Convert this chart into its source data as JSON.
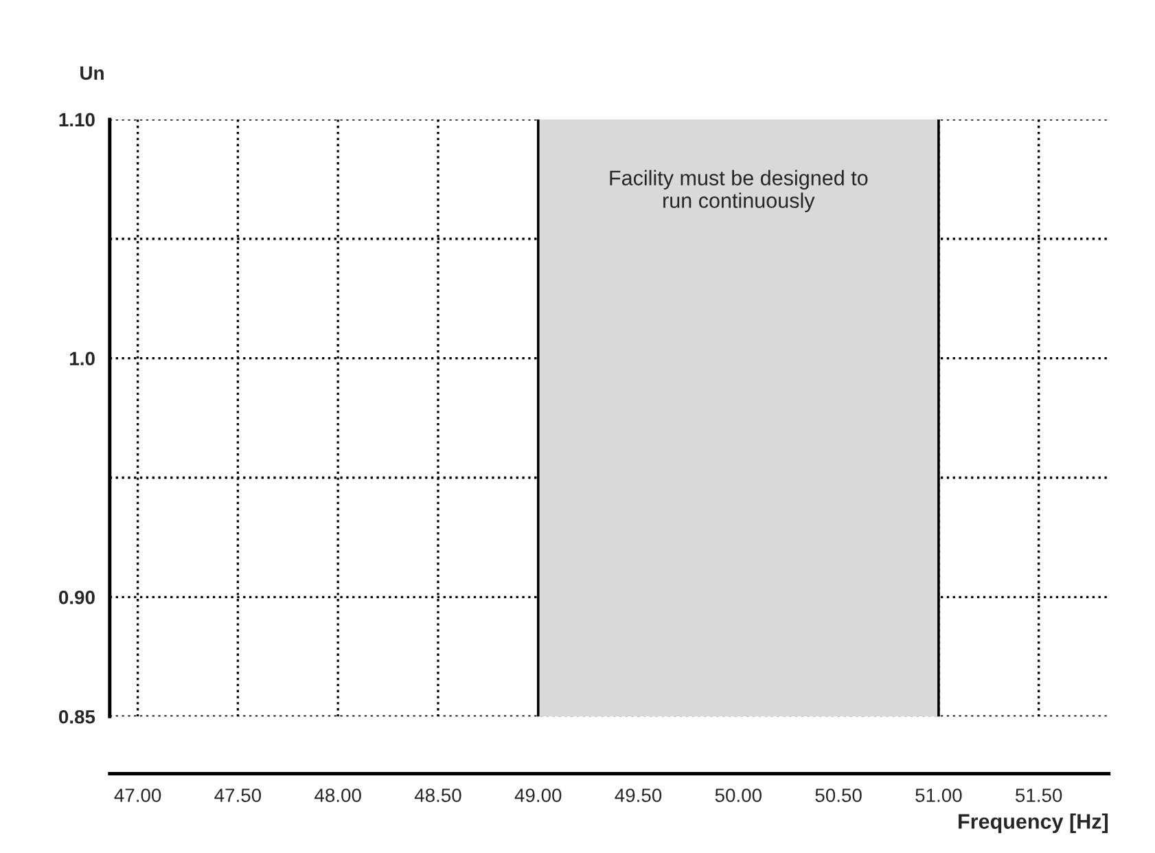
{
  "chart_data": {
    "type": "area",
    "x": [
      49.0,
      51.0
    ],
    "series": [
      {
        "color": "#d9d9d9",
        "values": [
          1.1,
          1.1
        ]
      }
    ],
    "annotations": [
      "Facility must be designed to\nrun continuously"
    ],
    "xlabel": "Frequency [Hz]",
    "ylabel": "Un",
    "xlim": [
      46.86,
      51.85
    ],
    "ylim": [
      0.85,
      1.1
    ],
    "xticks": [
      {
        "value": 47.0,
        "label": "47.00"
      },
      {
        "value": 47.5,
        "label": "47.50"
      },
      {
        "value": 48.0,
        "label": "48.00"
      },
      {
        "value": 48.5,
        "label": "48.50"
      },
      {
        "value": 49.0,
        "label": "49.00"
      },
      {
        "value": 49.5,
        "label": "49.50"
      },
      {
        "value": 50.0,
        "label": "50.00"
      },
      {
        "value": 50.5,
        "label": "50.50"
      },
      {
        "value": 51.0,
        "label": "51.00"
      },
      {
        "value": 51.5,
        "label": "51.50"
      }
    ],
    "yticks": [
      {
        "value": 0.85,
        "label": "0.85"
      },
      {
        "value": 0.9,
        "label": "0.90"
      },
      {
        "value": 0.95,
        "label": null
      },
      {
        "value": 1.0,
        "label": "1.0"
      },
      {
        "value": 1.05,
        "label": null
      },
      {
        "value": 1.1,
        "label": "1.10"
      }
    ],
    "grid": true
  }
}
